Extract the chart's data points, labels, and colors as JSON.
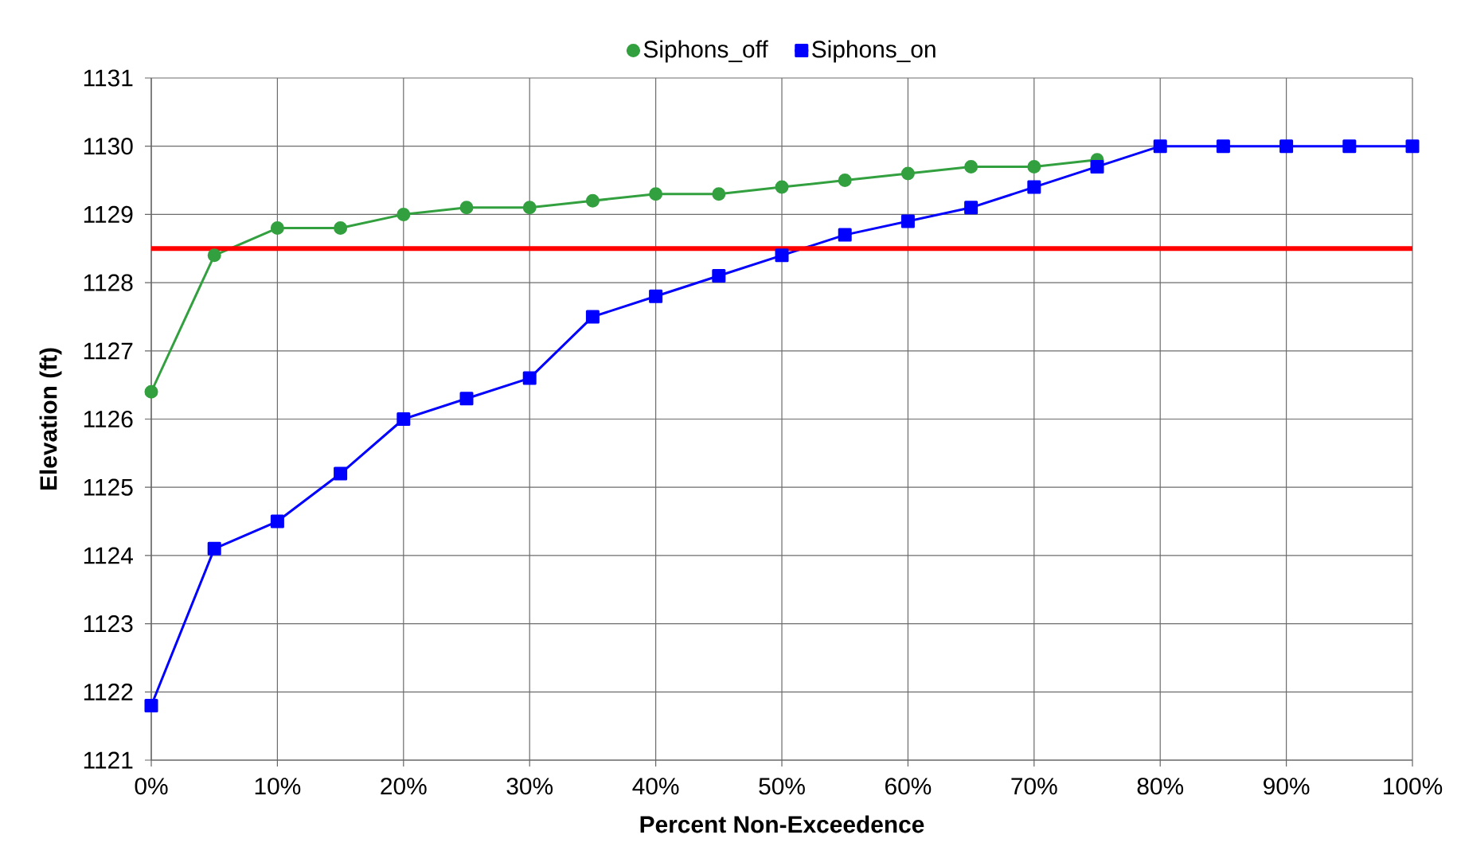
{
  "chart_data": {
    "type": "line",
    "xlabel": "Percent Non-Exceedence",
    "ylabel": "Elevation (ft)",
    "x": [
      0,
      5,
      10,
      15,
      20,
      25,
      30,
      35,
      40,
      45,
      50,
      55,
      60,
      65,
      70,
      75,
      80,
      85,
      90,
      95,
      100
    ],
    "series": [
      {
        "name": "Siphons_off",
        "color": "#33a040",
        "marker": "circle",
        "values": [
          1126.4,
          1128.4,
          1128.8,
          1128.8,
          1129.0,
          1129.1,
          1129.1,
          1129.2,
          1129.3,
          1129.3,
          1129.4,
          1129.5,
          1129.6,
          1129.7,
          1129.7,
          1129.8,
          null,
          null,
          null,
          null,
          null
        ]
      },
      {
        "name": "Siphons_on",
        "color": "#0000ff",
        "marker": "square",
        "values": [
          1121.8,
          1124.1,
          1124.5,
          1125.2,
          1126.0,
          1126.3,
          1126.6,
          1127.5,
          1127.8,
          1128.1,
          1128.4,
          1128.7,
          1128.9,
          1129.1,
          1129.4,
          1129.7,
          1130.0,
          1130.0,
          1130.0,
          1130.0,
          1130.0
        ]
      }
    ],
    "ref_lines": [
      {
        "axis": "y",
        "value": 1128.5,
        "color": "#ff0000"
      }
    ],
    "xlim": [
      0,
      100
    ],
    "xticks": [
      {
        "value": 0,
        "label": "0%"
      },
      {
        "value": 10,
        "label": "10%"
      },
      {
        "value": 20,
        "label": "20%"
      },
      {
        "value": 30,
        "label": "30%"
      },
      {
        "value": 40,
        "label": "40%"
      },
      {
        "value": 50,
        "label": "50%"
      },
      {
        "value": 60,
        "label": "60%"
      },
      {
        "value": 70,
        "label": "70%"
      },
      {
        "value": 80,
        "label": "80%"
      },
      {
        "value": 90,
        "label": "90%"
      },
      {
        "value": 100,
        "label": "100%"
      }
    ],
    "ylim": [
      1121,
      1131
    ],
    "yticks": [
      1121,
      1122,
      1123,
      1124,
      1125,
      1126,
      1127,
      1128,
      1129,
      1130,
      1131
    ],
    "grid": true,
    "legend": "top",
    "line_style": "solid"
  }
}
